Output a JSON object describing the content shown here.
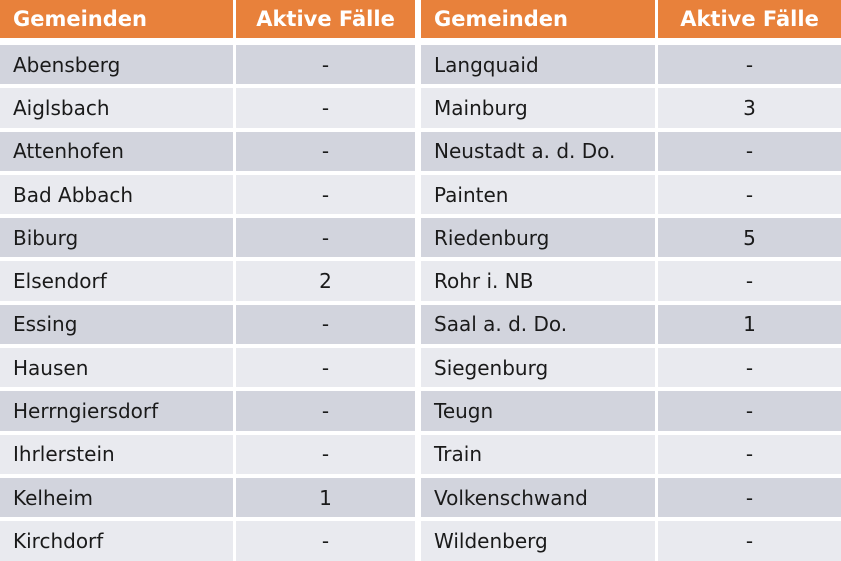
{
  "colors": {
    "header_bg": "#E8813B",
    "header_text": "#FFFFFF",
    "row_dark_bg": "#D2D4DD",
    "row_light_bg": "#E9EAEF",
    "cell_text": "#1A1A1A",
    "divider": "#FFFFFF"
  },
  "table": {
    "headers": [
      "Gemeinden",
      "Aktive Fälle",
      "Gemeinden",
      "Aktive Fälle"
    ],
    "left_rows": [
      {
        "gemeinde": "Abensberg",
        "faelle": "-"
      },
      {
        "gemeinde": "Aiglsbach",
        "faelle": "-"
      },
      {
        "gemeinde": "Attenhofen",
        "faelle": "-"
      },
      {
        "gemeinde": "Bad Abbach",
        "faelle": "-"
      },
      {
        "gemeinde": "Biburg",
        "faelle": "-"
      },
      {
        "gemeinde": "Elsendorf",
        "faelle": "2"
      },
      {
        "gemeinde": "Essing",
        "faelle": "-"
      },
      {
        "gemeinde": "Hausen",
        "faelle": "-"
      },
      {
        "gemeinde": "Herrngiersdorf",
        "faelle": "-"
      },
      {
        "gemeinde": "Ihrlerstein",
        "faelle": "-"
      },
      {
        "gemeinde": "Kelheim",
        "faelle": "1"
      },
      {
        "gemeinde": "Kirchdorf",
        "faelle": "-"
      }
    ],
    "right_rows": [
      {
        "gemeinde": "Langquaid",
        "faelle": "-"
      },
      {
        "gemeinde": "Mainburg",
        "faelle": "3"
      },
      {
        "gemeinde": "Neustadt a. d. Do.",
        "faelle": "-"
      },
      {
        "gemeinde": "Painten",
        "faelle": "-"
      },
      {
        "gemeinde": "Riedenburg",
        "faelle": "5"
      },
      {
        "gemeinde": "Rohr i. NB",
        "faelle": "-"
      },
      {
        "gemeinde": "Saal a. d. Do.",
        "faelle": "1"
      },
      {
        "gemeinde": "Siegenburg",
        "faelle": "-"
      },
      {
        "gemeinde": "Teugn",
        "faelle": "-"
      },
      {
        "gemeinde": "Train",
        "faelle": "-"
      },
      {
        "gemeinde": "Volkenschwand",
        "faelle": "-"
      },
      {
        "gemeinde": "Wildenberg",
        "faelle": "-"
      }
    ]
  },
  "chart_data": {
    "type": "table",
    "columns": [
      "Gemeinden",
      "Aktive Fälle",
      "Gemeinden",
      "Aktive Fälle"
    ],
    "rows": [
      [
        "Abensberg",
        "-",
        "Langquaid",
        "-"
      ],
      [
        "Aiglsbach",
        "-",
        "Mainburg",
        "3"
      ],
      [
        "Attenhofen",
        "-",
        "Neustadt a. d. Do.",
        "-"
      ],
      [
        "Bad Abbach",
        "-",
        "Painten",
        "-"
      ],
      [
        "Biburg",
        "-",
        "Riedenburg",
        "5"
      ],
      [
        "Elsendorf",
        "2",
        "Rohr i. NB",
        "-"
      ],
      [
        "Essing",
        "-",
        "Saal a. d. Do.",
        "1"
      ],
      [
        "Hausen",
        "-",
        "Siegenburg",
        "-"
      ],
      [
        "Herrngiersdorf",
        "-",
        "Teugn",
        "-"
      ],
      [
        "Ihrlerstein",
        "-",
        "Train",
        "-"
      ],
      [
        "Kelheim",
        "1",
        "Volkenschwand",
        "-"
      ],
      [
        "Kirchdorf",
        "-",
        "Wildenberg",
        "-"
      ]
    ]
  }
}
